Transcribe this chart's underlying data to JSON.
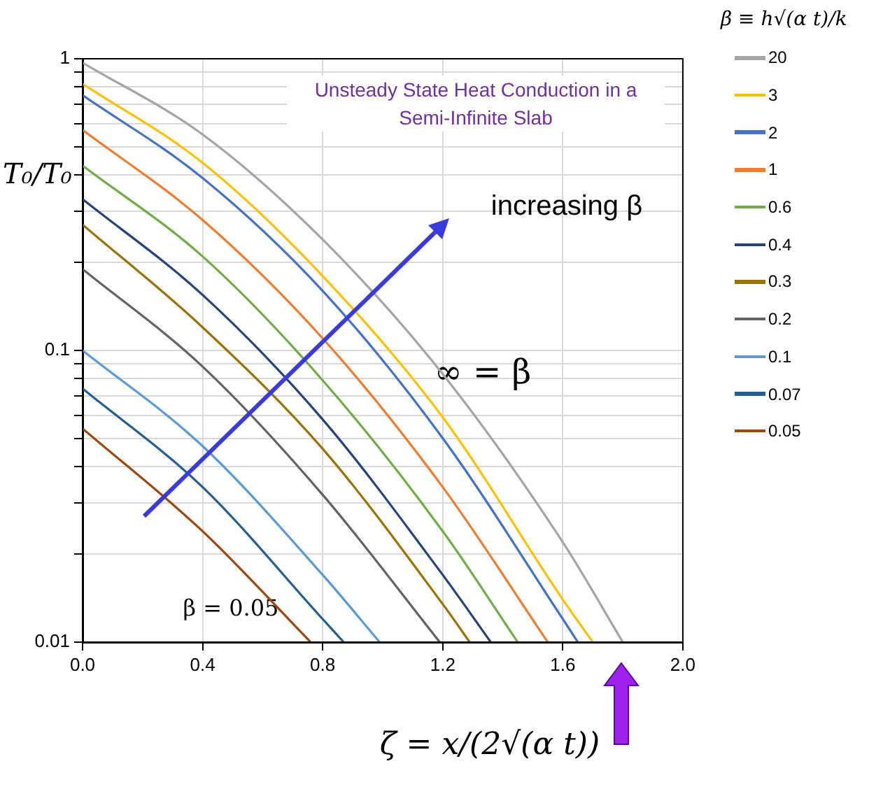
{
  "chart_data": {
    "type": "line",
    "title": "Unsteady State Heat Conduction in a Semi-Infinite Slab",
    "xlabel": "ζ = x/(2√(α t))",
    "ylabel": "T₀/T₀",
    "legend_title": "β ≡ h√(α t)/k",
    "log": "y",
    "grid": true,
    "legend": "right",
    "marker": "none",
    "line_style": "solid",
    "xlim": [
      0,
      2
    ],
    "xticks": [
      {
        "value": 0,
        "label": "0.0"
      },
      {
        "value": 0.4,
        "label": "0.4"
      },
      {
        "value": 0.8,
        "label": "0.8"
      },
      {
        "value": 1.2,
        "label": "1.2"
      },
      {
        "value": 1.6,
        "label": "1.6"
      },
      {
        "value": 2,
        "label": "2.0"
      }
    ],
    "ylim": [
      0.01,
      1
    ],
    "yticks": [
      0.01,
      {
        "value": 0.02,
        "label": null
      },
      {
        "value": 0.03,
        "label": null
      },
      {
        "value": 0.04,
        "label": null
      },
      {
        "value": 0.05,
        "label": null
      },
      {
        "value": 0.06,
        "label": null
      },
      {
        "value": 0.07,
        "label": null
      },
      {
        "value": 0.08,
        "label": null
      },
      {
        "value": 0.09,
        "label": null
      },
      0.1,
      {
        "value": 0.2,
        "label": null
      },
      {
        "value": 0.3,
        "label": null
      },
      {
        "value": 0.4,
        "label": null
      },
      {
        "value": 0.5,
        "label": null
      },
      {
        "value": 0.6,
        "label": null
      },
      {
        "value": 0.7,
        "label": null
      },
      {
        "value": 0.8,
        "label": null
      },
      {
        "value": 0.9,
        "label": null
      },
      1
    ],
    "series": [
      {
        "name": "20",
        "color": "#a5a5a5",
        "x": [
          0,
          0.4,
          0.8,
          1.2,
          1.6,
          1.8
        ],
        "values": [
          0.97,
          0.55,
          0.24,
          0.083,
          0.022,
          0.01
        ]
      },
      {
        "name": "3",
        "color": "#ffc000",
        "x": [
          0,
          0.4,
          0.8,
          1.2,
          1.6,
          1.7
        ],
        "values": [
          0.82,
          0.44,
          0.18,
          0.059,
          0.014,
          0.01
        ]
      },
      {
        "name": "2",
        "color": "#4472c4",
        "x": [
          0,
          0.4,
          0.8,
          1.2,
          1.6,
          1.65
        ],
        "values": [
          0.75,
          0.39,
          0.16,
          0.05,
          0.012,
          0.01
        ]
      },
      {
        "name": "1",
        "color": "#ed7d31",
        "x": [
          0,
          0.4,
          0.8,
          1.2,
          1.55
        ],
        "values": [
          0.57,
          0.28,
          0.11,
          0.034,
          0.01
        ]
      },
      {
        "name": "0.6",
        "color": "#70ad47",
        "x": [
          0,
          0.4,
          0.8,
          1.2,
          1.45
        ],
        "values": [
          0.43,
          0.21,
          0.079,
          0.024,
          0.01
        ]
      },
      {
        "name": "0.4",
        "color": "#264478",
        "x": [
          0,
          0.4,
          0.8,
          1.2,
          1.36
        ],
        "values": [
          0.33,
          0.155,
          0.058,
          0.017,
          0.01
        ]
      },
      {
        "name": "0.3",
        "color": "#997300",
        "x": [
          0,
          0.4,
          0.8,
          1.2,
          1.29
        ],
        "values": [
          0.27,
          0.12,
          0.046,
          0.0135,
          0.01
        ]
      },
      {
        "name": "0.2",
        "color": "#636363",
        "x": [
          0,
          0.4,
          0.8,
          1.19
        ],
        "values": [
          0.19,
          0.088,
          0.032,
          0.01
        ]
      },
      {
        "name": "0.1",
        "color": "#5b9bd5",
        "x": [
          0,
          0.4,
          0.8,
          0.99
        ],
        "values": [
          0.1,
          0.047,
          0.017,
          0.01
        ]
      },
      {
        "name": "0.07",
        "color": "#255e91",
        "x": [
          0,
          0.4,
          0.8,
          0.87
        ],
        "values": [
          0.074,
          0.034,
          0.012,
          0.01
        ]
      },
      {
        "name": "0.05",
        "color": "#9e480e",
        "x": [
          0,
          0.4,
          0.76
        ],
        "values": [
          0.054,
          0.024,
          0.01
        ]
      }
    ],
    "annotations": [
      "increasing β",
      "∞ = β",
      "β = 0.05"
    ]
  }
}
